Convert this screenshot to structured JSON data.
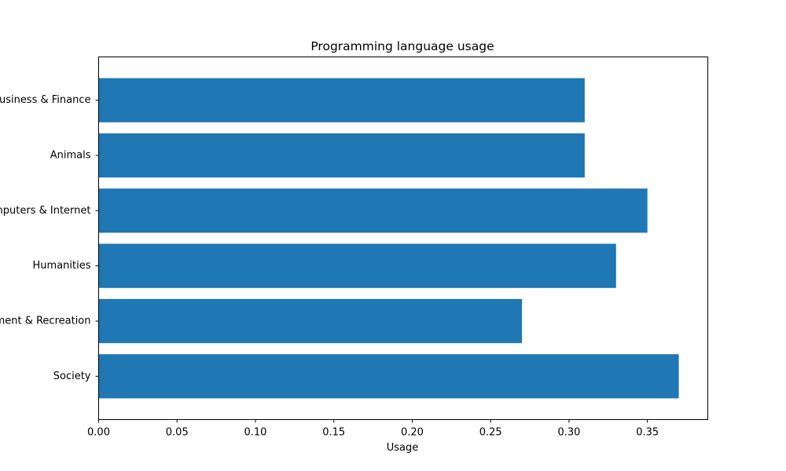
{
  "chart_data": {
    "type": "bar",
    "orientation": "horizontal",
    "title": "Programming language usage",
    "xlabel": "Usage",
    "ylabel": "",
    "categories": [
      "Business & Finance",
      "Animals",
      "Computers & Internet",
      "Humanities",
      "Entertainment & Recreation",
      "Society"
    ],
    "values": [
      0.31,
      0.31,
      0.35,
      0.33,
      0.27,
      0.37
    ],
    "xlim": [
      0,
      0.3885
    ],
    "xticks": [
      "0.00",
      "0.05",
      "0.10",
      "0.15",
      "0.20",
      "0.25",
      "0.30",
      "0.35"
    ],
    "bar_color": "#1f77b4",
    "grid": false,
    "legend": "none"
  }
}
